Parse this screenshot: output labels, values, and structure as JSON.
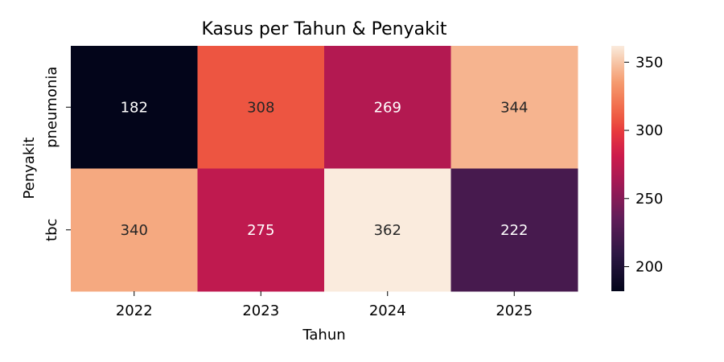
{
  "chart_data": {
    "type": "heatmap",
    "title": "Kasus per Tahun & Penyakit",
    "xlabel": "Tahun",
    "ylabel": "Penyakit",
    "x": [
      "2022",
      "2023",
      "2024",
      "2025"
    ],
    "y": [
      "pneumonia",
      "tbc"
    ],
    "values": [
      [
        182,
        308,
        269,
        344
      ],
      [
        340,
        275,
        362,
        222
      ]
    ],
    "colorbar": {
      "range": [
        182,
        362
      ],
      "ticks": [
        "200",
        "250",
        "300",
        "350"
      ],
      "colormap": "rocket"
    }
  }
}
